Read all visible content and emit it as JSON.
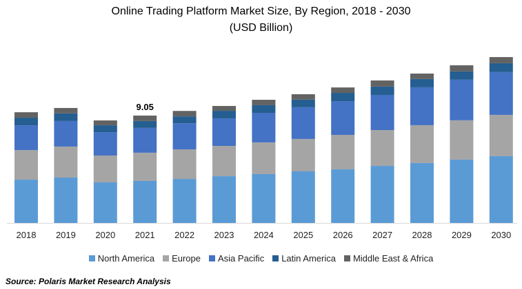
{
  "chart_data": {
    "type": "bar",
    "stacked": true,
    "title": "Online Trading Platform Market Size, By Region, 2018 - 2030",
    "subtitle": "(USD Billion)",
    "xlabel": "",
    "ylabel": "",
    "ylim": [
      0,
      14
    ],
    "grid": false,
    "legend_position": "bottom",
    "categories": [
      "2018",
      "2019",
      "2020",
      "2021",
      "2022",
      "2023",
      "2024",
      "2025",
      "2026",
      "2027",
      "2028",
      "2029",
      "2030"
    ],
    "series": [
      {
        "name": "North America",
        "color": "#5B9BD5",
        "values": [
          3.65,
          3.83,
          3.42,
          3.54,
          3.71,
          3.94,
          4.12,
          4.35,
          4.52,
          4.81,
          5.05,
          5.34,
          5.63
        ]
      },
      {
        "name": "Europe",
        "color": "#A5A5A5",
        "values": [
          2.49,
          2.61,
          2.26,
          2.38,
          2.49,
          2.55,
          2.67,
          2.73,
          2.9,
          3.02,
          3.19,
          3.31,
          3.48
        ]
      },
      {
        "name": "Asia Pacific",
        "color": "#4472C4",
        "values": [
          2.09,
          2.15,
          1.97,
          2.09,
          2.2,
          2.32,
          2.49,
          2.67,
          2.84,
          2.96,
          3.19,
          3.42,
          3.6
        ]
      },
      {
        "name": "Latin America",
        "color": "#255E91",
        "values": [
          0.64,
          0.64,
          0.58,
          0.58,
          0.58,
          0.64,
          0.64,
          0.64,
          0.7,
          0.7,
          0.7,
          0.7,
          0.75
        ]
      },
      {
        "name": "Middle East & Africa",
        "color": "#636363",
        "values": [
          0.46,
          0.46,
          0.41,
          0.46,
          0.46,
          0.41,
          0.46,
          0.46,
          0.46,
          0.52,
          0.46,
          0.52,
          0.52
        ]
      }
    ],
    "annotations": [
      {
        "category": "2021",
        "text": "9.05"
      }
    ]
  },
  "source": "Source: Polaris Market Research Analysis"
}
